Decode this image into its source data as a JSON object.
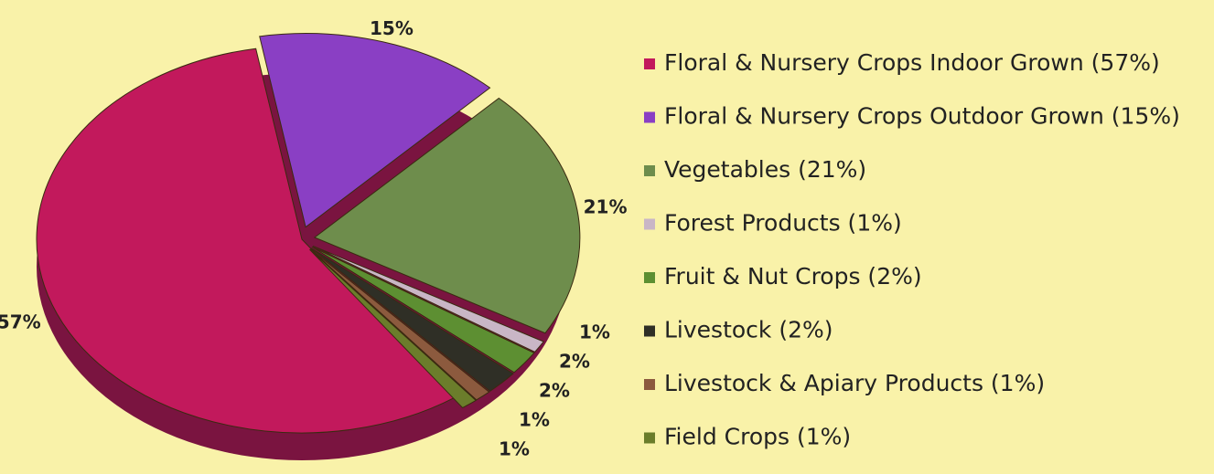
{
  "chart_data": {
    "type": "pie",
    "categories": [
      "Floral & Nursery Crops Indoor Grown (57%)",
      "Floral & Nursery Crops Outdoor Grown (15%)",
      "Vegetables (21%)",
      "Forest Products (1%)",
      "Fruit & Nut Crops (2%)",
      "Livestock (2%)",
      "Livestock & Apiary Products (1%)",
      "Field Crops (1%)"
    ],
    "values": [
      57,
      15,
      21,
      1,
      2,
      2,
      1,
      1
    ],
    "value_labels": [
      "57%",
      "15%",
      "21%",
      "1%",
      "2%",
      "2%",
      "1%",
      "1%"
    ],
    "colors": [
      "#c2195c",
      "#8a3fc4",
      "#6e8d4c",
      "#c9b6c6",
      "#5d8f32",
      "#2f2f26",
      "#8c5a3e",
      "#6b7d2b"
    ],
    "legend": "right"
  }
}
